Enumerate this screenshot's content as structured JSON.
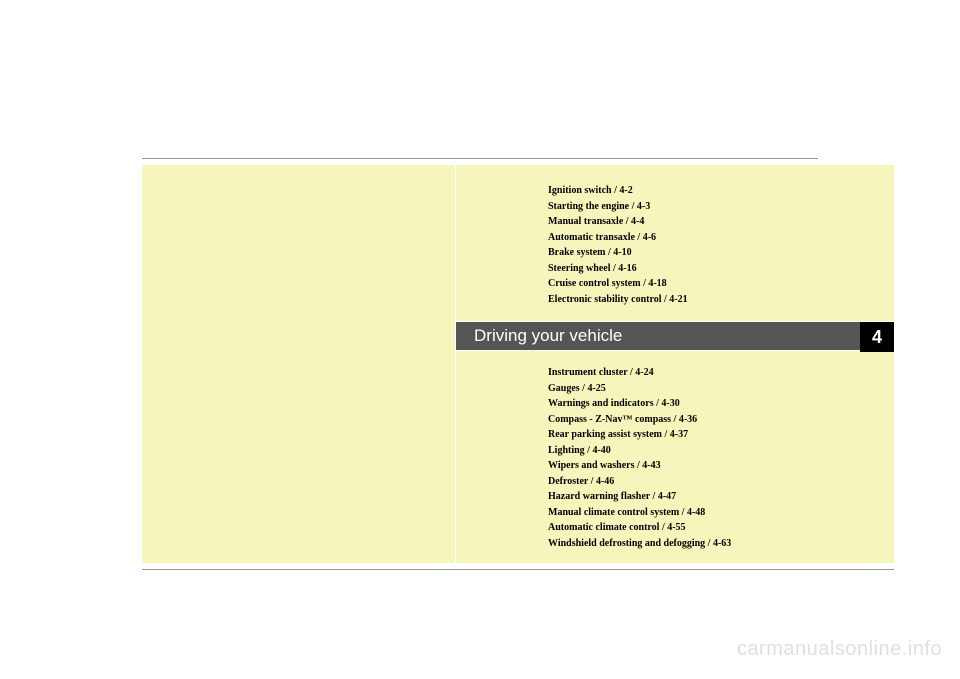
{
  "chapter": {
    "title": "Driving your vehicle",
    "number": "4"
  },
  "toc_top": [
    "Ignition switch / 4-2",
    "Starting the engine / 4-3",
    "Manual transaxle / 4-4",
    "Automatic transaxle / 4-6",
    "Brake system / 4-10",
    "Steering wheel / 4-16",
    "Cruise control system / 4-18",
    "Electronic stability control / 4-21"
  ],
  "toc_bottom": [
    "Instrument cluster / 4-24",
    "Gauges / 4-25",
    "Warnings and indicators / 4-30",
    "Compass - Z-Nav™ compass / 4-36",
    "Rear parking assist system / 4-37",
    "Lighting / 4-40",
    "Wipers and washers / 4-43",
    "Defroster / 4-46",
    "Hazard warning flasher / 4-47",
    "Manual climate control system / 4-48",
    "Automatic climate control / 4-55",
    "Windshield defrosting and defogging / 4-63"
  ],
  "watermark": "carmanualsonline.info",
  "colors": {
    "page_bg": "#ffffff",
    "panel_bg": "#f6f6bc",
    "band_bg": "#555555",
    "tab_bg": "#000000",
    "rule": "#999999",
    "watermark": "#e0e0e0"
  }
}
